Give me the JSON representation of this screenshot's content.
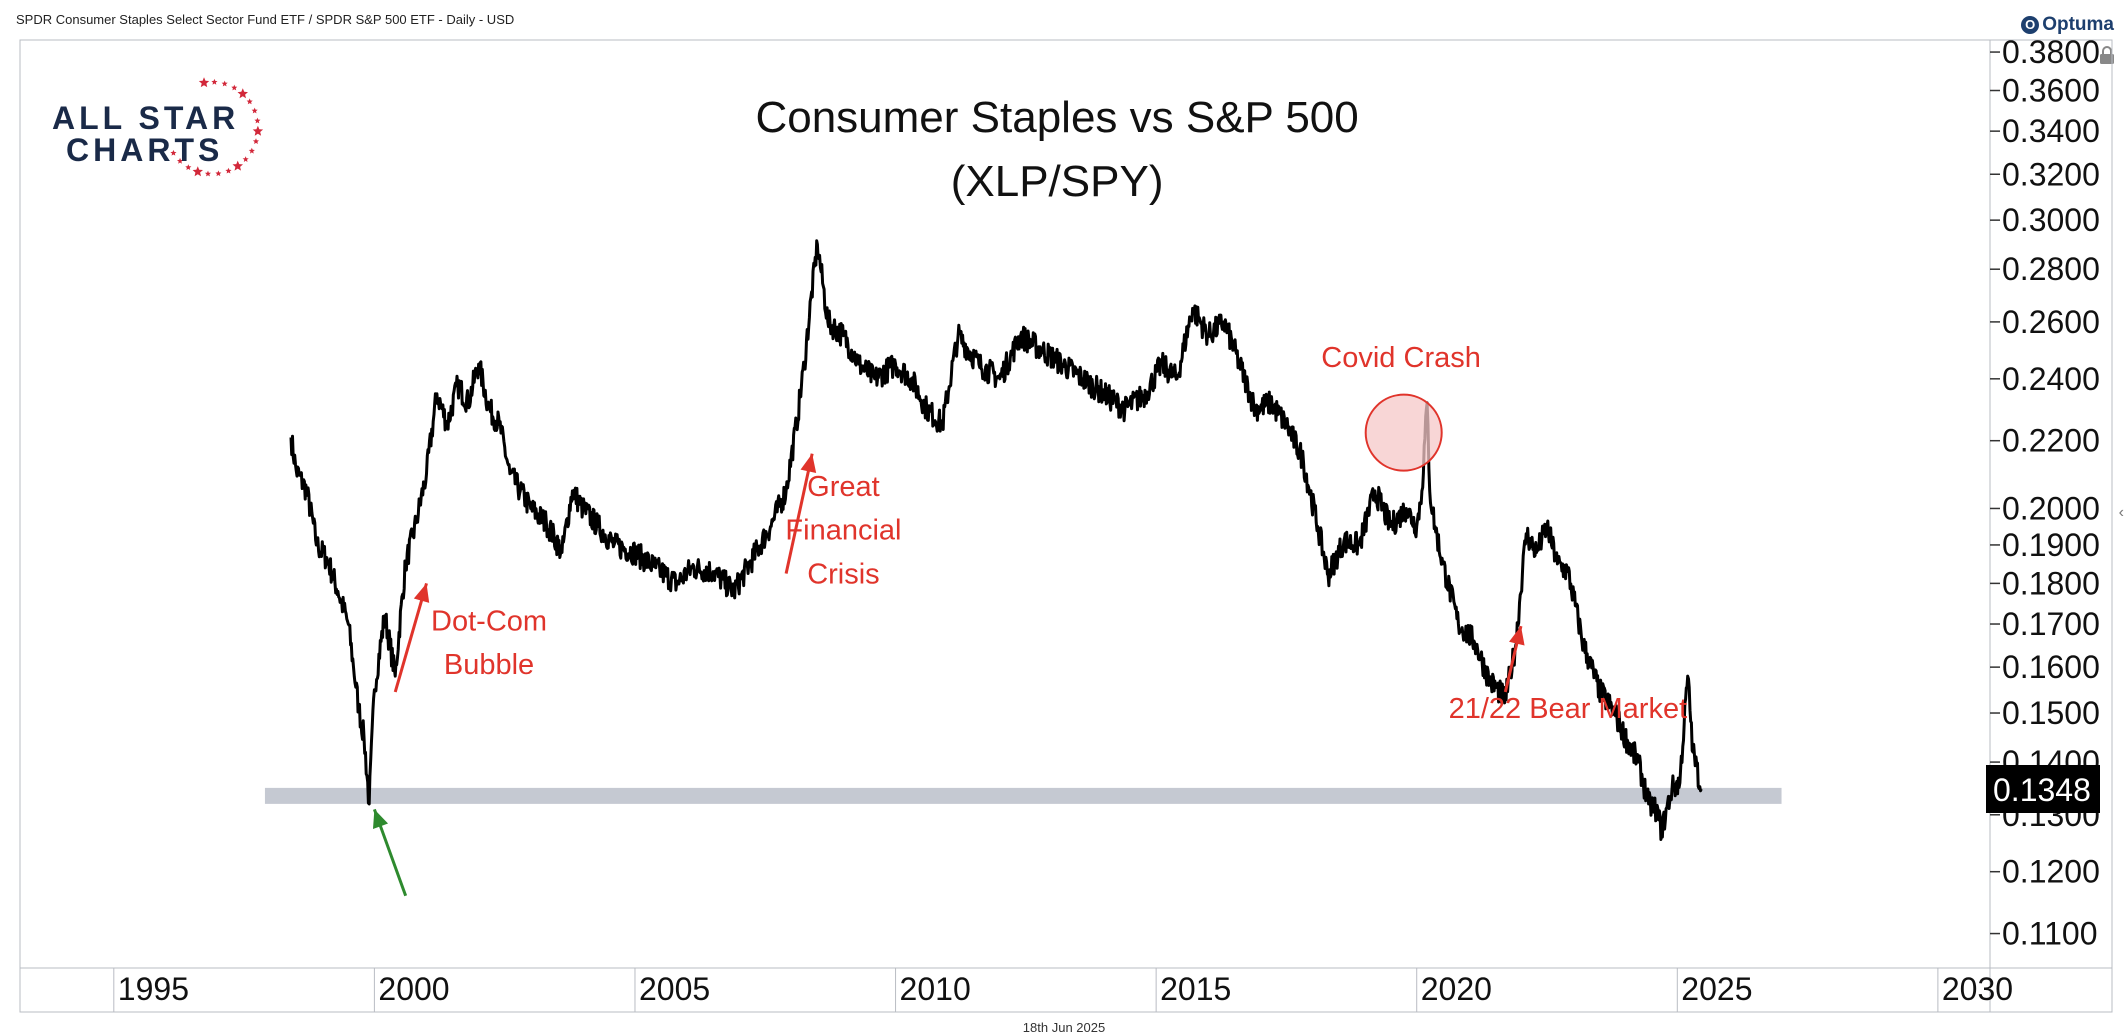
{
  "header": {
    "symbol_text": "SPDR Consumer Staples Select Sector Fund ETF / SPDR S&P 500 ETF - Daily - USD",
    "brand": "Optuma"
  },
  "logo": {
    "line1": "ALL STAR",
    "line2": "CHARTS"
  },
  "footer": {
    "date": "18th Jun 2025"
  },
  "chart_data": {
    "type": "line",
    "title": "Consumer Staples vs S&P 500",
    "subtitle": "(XLP/SPY)",
    "scale": "log",
    "ylim": [
      0.1048,
      0.3865
    ],
    "xlim": [
      1993.2,
      2031.0
    ],
    "x_ticks": [
      1995,
      2000,
      2005,
      2010,
      2015,
      2020,
      2025,
      2030
    ],
    "y_ticks": [
      0.11,
      0.12,
      0.13,
      0.14,
      0.15,
      0.16,
      0.17,
      0.18,
      0.19,
      0.2,
      0.22,
      0.24,
      0.26,
      0.28,
      0.3,
      0.32,
      0.34,
      0.36,
      0.38
    ],
    "y_tick_labels": [
      "0.1100",
      "0.1200",
      "0.1300",
      "0.1400",
      "0.1500",
      "0.1600",
      "0.1700",
      "0.1800",
      "0.1900",
      "0.2000",
      "0.2200",
      "0.2400",
      "0.2600",
      "0.2800",
      "0.3000",
      "0.3200",
      "0.3400",
      "0.3600",
      "0.3800"
    ],
    "last_value_label": "0.1348",
    "last_value": 0.1348,
    "support_level": 0.1335,
    "support_range": [
      1997.9,
      2027.0
    ],
    "series": [
      {
        "x": [
          1998.4,
          1998.5,
          1998.7,
          1998.9,
          1999.1,
          1999.3,
          1999.5,
          1999.6,
          1999.7,
          1999.8,
          1999.9,
          2000.0,
          2000.2,
          2000.4,
          2000.6,
          2000.8,
          2001.0,
          2001.2,
          2001.4,
          2001.6,
          2001.8,
          2002.0,
          2002.2,
          2002.4,
          2002.6,
          2002.8,
          2003.0,
          2003.3,
          2003.6,
          2003.8,
          2004.0,
          2004.3,
          2004.6,
          2005.0,
          2005.4,
          2005.8,
          2006.1,
          2006.5,
          2006.9,
          2007.2,
          2007.6,
          2007.9,
          2008.1,
          2008.25,
          2008.5,
          2008.7,
          2009.0,
          2009.3,
          2009.6,
          2010.0,
          2010.3,
          2010.6,
          2010.9,
          2011.2,
          2011.6,
          2012.0,
          2012.4,
          2012.8,
          2013.2,
          2013.6,
          2014.0,
          2014.4,
          2014.8,
          2015.1,
          2015.4,
          2015.7,
          2016.0,
          2016.3,
          2016.6,
          2016.9,
          2017.2,
          2017.5,
          2017.8,
          2018.1,
          2018.3,
          2018.6,
          2018.9,
          2019.2,
          2019.5,
          2019.8,
          2020.0,
          2020.1,
          2020.2,
          2020.25,
          2020.35,
          2020.5,
          2020.8,
          2021.1,
          2021.4,
          2021.7,
          2021.9,
          2022.1,
          2022.3,
          2022.5,
          2022.7,
          2022.9,
          2023.2,
          2023.5,
          2023.8,
          2024.0,
          2024.25,
          2024.45,
          2024.6,
          2024.7,
          2024.9,
          2025.05,
          2025.2,
          2025.3,
          2025.46
        ],
        "values": [
          0.221,
          0.211,
          0.205,
          0.19,
          0.186,
          0.178,
          0.17,
          0.16,
          0.151,
          0.145,
          0.132,
          0.155,
          0.172,
          0.158,
          0.185,
          0.196,
          0.21,
          0.235,
          0.225,
          0.238,
          0.232,
          0.245,
          0.23,
          0.225,
          0.21,
          0.205,
          0.2,
          0.196,
          0.188,
          0.205,
          0.2,
          0.195,
          0.19,
          0.188,
          0.184,
          0.18,
          0.184,
          0.183,
          0.178,
          0.185,
          0.195,
          0.205,
          0.225,
          0.245,
          0.29,
          0.26,
          0.255,
          0.245,
          0.24,
          0.245,
          0.24,
          0.23,
          0.225,
          0.255,
          0.245,
          0.24,
          0.255,
          0.25,
          0.245,
          0.24,
          0.235,
          0.23,
          0.235,
          0.245,
          0.24,
          0.265,
          0.255,
          0.26,
          0.245,
          0.23,
          0.232,
          0.225,
          0.215,
          0.195,
          0.182,
          0.191,
          0.19,
          0.205,
          0.195,
          0.2,
          0.195,
          0.205,
          0.232,
          0.205,
          0.195,
          0.185,
          0.17,
          0.166,
          0.157,
          0.153,
          0.165,
          0.193,
          0.188,
          0.195,
          0.185,
          0.183,
          0.165,
          0.155,
          0.15,
          0.145,
          0.14,
          0.132,
          0.131,
          0.127,
          0.135,
          0.136,
          0.158,
          0.142,
          0.1348
        ]
      }
    ],
    "annotations": [
      {
        "text": "Dot-Com",
        "x": 2002.2,
        "y": 0.1685
      },
      {
        "text": "Bubble",
        "x": 2002.2,
        "y": 0.1585
      },
      {
        "text": "Great",
        "x": 2009.0,
        "y": 0.2035
      },
      {
        "text": "Financial",
        "x": 2009.0,
        "y": 0.1915
      },
      {
        "text": "Crisis",
        "x": 2009.0,
        "y": 0.18
      },
      {
        "text": "Covid Crash",
        "x": 2019.7,
        "y": 0.244
      },
      {
        "text": "21/22 Bear Market",
        "x": 2022.9,
        "y": 0.149
      }
    ],
    "arrows": [
      {
        "color": "#e0342b",
        "from": [
          2000.4,
          0.1545
        ],
        "to": [
          2001.0,
          0.18
        ]
      },
      {
        "color": "#e0342b",
        "from": [
          2007.9,
          0.1825
        ],
        "to": [
          2008.4,
          0.216
        ]
      },
      {
        "color": "#e0342b",
        "from": [
          2021.7,
          0.1545
        ],
        "to": [
          2022.0,
          0.1695
        ]
      },
      {
        "color": "#2e8a2e",
        "from": [
          2000.6,
          0.116
        ],
        "to": [
          2000.0,
          0.131
        ]
      }
    ],
    "highlight": {
      "x": 2019.75,
      "y": 0.2225
    },
    "colors": {
      "line": "#000000",
      "annotation": "#e0342b",
      "support": "#c5c9d2",
      "highlight_fill": "#f6c8c8",
      "highlight_stroke": "#e0342b",
      "up_arrow_green": "#2e8a2e",
      "label_bg": "#000000"
    }
  }
}
